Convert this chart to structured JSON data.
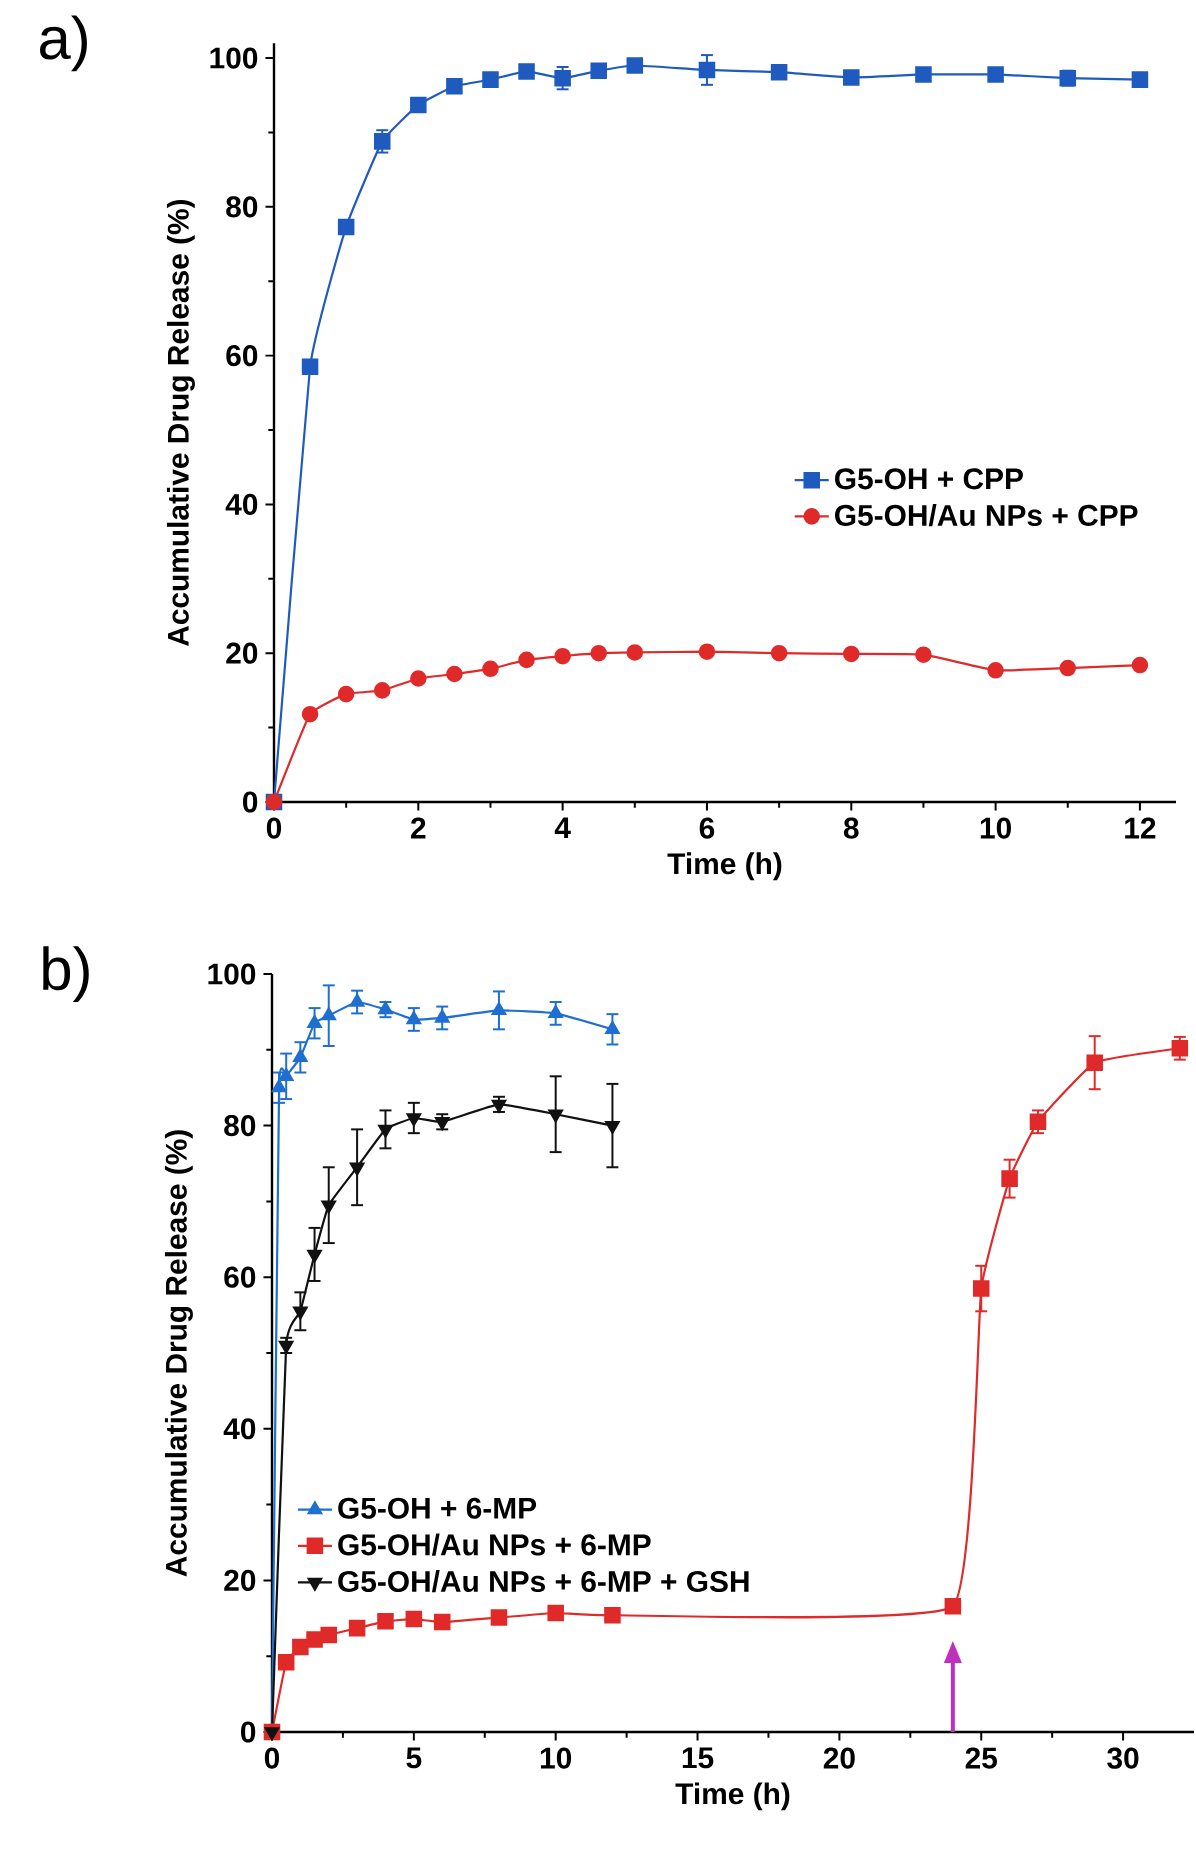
{
  "chart_data": [
    {
      "type": "line",
      "title": "a)",
      "xlabel": "Time (h)",
      "ylabel": "Accumulative Drug Release (%)",
      "xlim": [
        0,
        12.5
      ],
      "ylim": [
        0,
        102
      ],
      "xticks": [
        0,
        2,
        4,
        6,
        8,
        10,
        12
      ],
      "yticks": [
        0,
        20,
        40,
        60,
        80,
        100
      ],
      "legend": "center right",
      "series": [
        {
          "name": "G5-OH + CPP",
          "color": "#1f5bbf",
          "marker": "square",
          "x": [
            0,
            0.5,
            1,
            1.5,
            2,
            2.5,
            3,
            3.5,
            4,
            4.5,
            5,
            6,
            7,
            8,
            9,
            10,
            11,
            12
          ],
          "values": [
            0,
            58.5,
            77.3,
            88.8,
            93.7,
            96.2,
            97.1,
            98.2,
            97.3,
            98.3,
            99.0,
            98.4,
            98.1,
            97.4,
            97.8,
            97.8,
            97.3,
            97.1
          ],
          "errors": [
            null,
            null,
            null,
            1.5,
            null,
            null,
            null,
            null,
            1.5,
            null,
            null,
            2,
            null,
            null,
            null,
            null,
            1,
            null
          ]
        },
        {
          "name": "G5-OH/Au NPs + CPP",
          "color": "#e02a2a",
          "marker": "circle",
          "x": [
            0,
            0.5,
            1,
            1.5,
            2,
            2.5,
            3,
            3.5,
            4,
            4.5,
            5,
            6,
            7,
            8,
            9,
            10,
            11,
            12
          ],
          "values": [
            0,
            11.8,
            14.5,
            15.0,
            16.6,
            17.2,
            17.9,
            19.1,
            19.6,
            20.0,
            20.1,
            20.2,
            20.0,
            19.9,
            19.8,
            17.7,
            18.0,
            18.4
          ]
        }
      ]
    },
    {
      "type": "line",
      "title": "b)",
      "xlabel": "Time (h)",
      "ylabel": "Accumulative Drug Release (%)",
      "xlim": [
        0,
        32.5
      ],
      "ylim": [
        0,
        100
      ],
      "xticks": [
        0,
        5,
        10,
        15,
        20,
        25,
        30
      ],
      "yticks": [
        0,
        20,
        40,
        60,
        80,
        100
      ],
      "legend": "bottom left",
      "ref_lines": [
        {
          "axis": "x",
          "value": 24,
          "color": "#c030c0"
        }
      ],
      "series": [
        {
          "name": "G5-OH + 6-MP",
          "color": "#1f6fd0",
          "marker": "triangle",
          "x": [
            0,
            0.25,
            0.5,
            1,
            1.5,
            2,
            3,
            4,
            5,
            6,
            8,
            10,
            12
          ],
          "values": [
            0,
            85,
            86.5,
            89,
            93.5,
            94.5,
            96.3,
            95.3,
            94,
            94.2,
            95.2,
            94.8,
            92.7
          ],
          "errors": [
            null,
            2,
            3,
            2,
            2,
            4,
            1.5,
            1,
            1.5,
            1.5,
            2.5,
            1.5,
            2
          ]
        },
        {
          "name": "G5-OH/Au NPs + 6-MP",
          "color": "#e02a2a",
          "marker": "square",
          "x": [
            0,
            0.5,
            1,
            1.5,
            2,
            3,
            4,
            5,
            6,
            8,
            10,
            12,
            24,
            25,
            26,
            27,
            29,
            32
          ],
          "values": [
            0,
            9.2,
            11.2,
            12.2,
            12.8,
            13.7,
            14.6,
            14.9,
            14.5,
            15.1,
            15.7,
            15.4,
            16.6,
            58.5,
            73,
            80.5,
            88.3,
            90.2
          ],
          "errors": [
            null,
            null,
            null,
            null,
            null,
            null,
            null,
            null,
            null,
            null,
            null,
            null,
            null,
            3,
            2.5,
            1.5,
            3.5,
            1.5
          ]
        },
        {
          "name": "G5-OH/Au NPs + 6-MP + GSH",
          "color": "#111111",
          "marker": "triangle down",
          "x": [
            0,
            0.5,
            1,
            1.5,
            2,
            3,
            4,
            5,
            6,
            8,
            10,
            12
          ],
          "values": [
            0,
            51,
            55.5,
            63,
            69.5,
            74.5,
            79.5,
            81,
            80.5,
            82.8,
            81.5,
            80
          ],
          "errors": [
            null,
            1,
            2.5,
            3.5,
            5,
            5,
            2.5,
            2,
            1,
            1,
            5,
            5.5
          ]
        }
      ]
    }
  ]
}
